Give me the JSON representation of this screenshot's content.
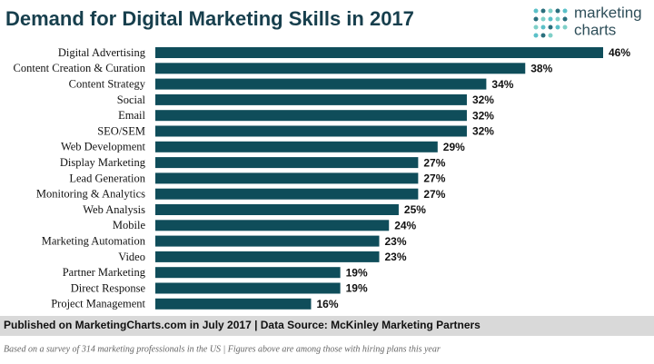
{
  "chart_data": {
    "type": "bar",
    "orientation": "horizontal",
    "title": "Demand for Digital Marketing Skills in 2017",
    "categories": [
      "Digital Advertising",
      "Content Creation & Curation",
      "Content Strategy",
      "Social",
      "Email",
      "SEO/SEM",
      "Web Development",
      "Display Marketing",
      "Lead Generation",
      "Monitoring & Analytics",
      "Web Analysis",
      "Mobile",
      "Marketing Automation",
      "Video",
      "Partner Marketing",
      "Direct Response",
      "Project Management"
    ],
    "values": [
      46,
      38,
      34,
      32,
      32,
      32,
      29,
      27,
      27,
      27,
      25,
      24,
      23,
      23,
      19,
      19,
      16
    ],
    "value_labels": [
      "46%",
      "38%",
      "34%",
      "32%",
      "32%",
      "32%",
      "29%",
      "27%",
      "27%",
      "27%",
      "25%",
      "24%",
      "23%",
      "23%",
      "19%",
      "19%",
      "16%"
    ],
    "color": "#0f4d5a",
    "source": "Published on MarketingCharts.com in July 2017 | Data Source: McKinley Marketing Partners",
    "note": "Based on a survey of 314 marketing professionals in the US | Figures above are among those with hiring plans this year"
  },
  "logo": [
    "marketing",
    "charts"
  ]
}
